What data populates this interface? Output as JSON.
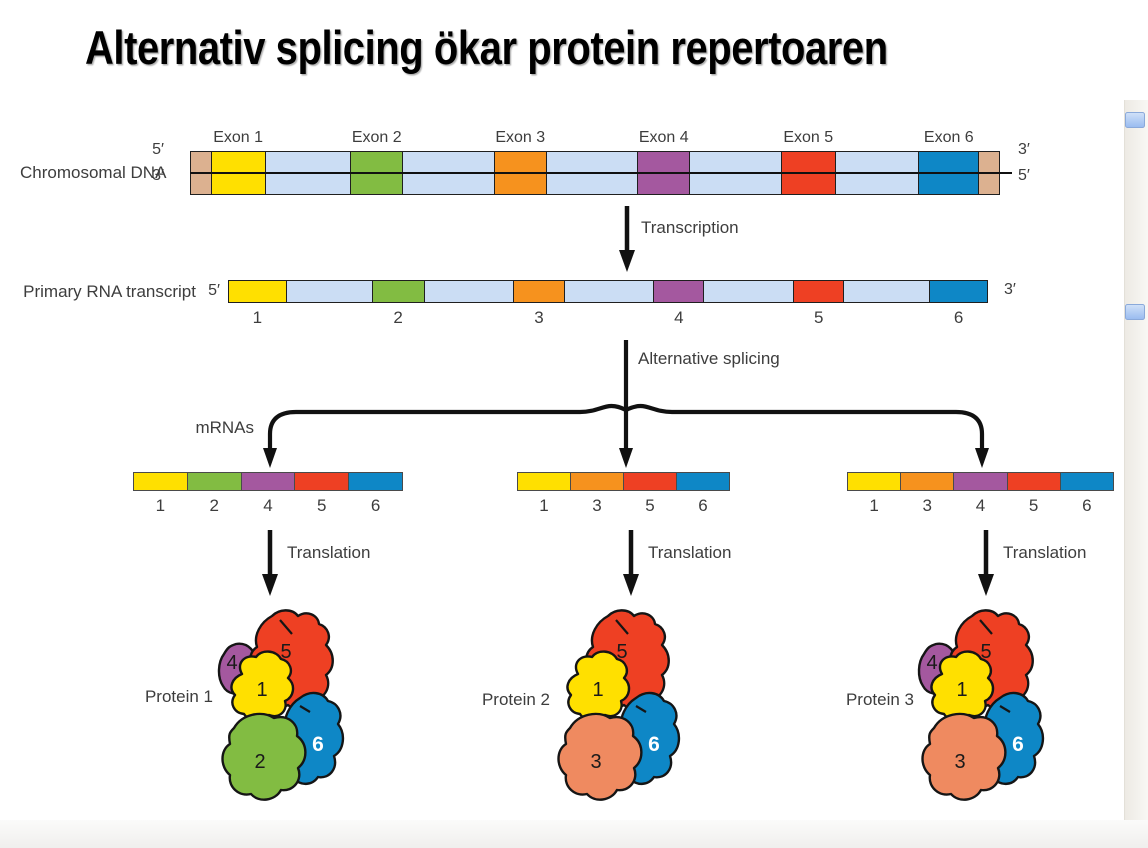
{
  "title": "Alternativ splicing ökar protein repertoaren",
  "labels": {
    "transcription": "Transcription",
    "alt_splicing": "Alternative splicing",
    "mrnas": "mRNAs",
    "translation": "Translation"
  },
  "colors": {
    "exon": {
      "1": "#FFE000",
      "2": "#82BC42",
      "3": "#F6921E",
      "4": "#A4589F",
      "5": "#EE4023",
      "6": "#0E87C6"
    },
    "domain": {
      "1": "#FFE000",
      "2": "#82BC42",
      "3": "#EF8A60",
      "4": "#A4589F",
      "5": "#EE4023",
      "6": "#0E87C6"
    },
    "intron": "#CBDDF4",
    "cap": "#DCB190",
    "outline": "#151515",
    "text": "#3d3d3d",
    "domain6_text": "#ffffff",
    "scroll_thumb": "#a9c7f0"
  },
  "dna": {
    "label": "Chromosomal DNA",
    "left": {
      "top": "5′",
      "bottom": "3′"
    },
    "right": {
      "top": "3′",
      "bottom": "5′"
    },
    "segments": [
      {
        "t": "cap",
        "w": 22
      },
      {
        "t": "exon",
        "n": "1",
        "label": "Exon 1",
        "w": 56
      },
      {
        "t": "intron",
        "w": 88
      },
      {
        "t": "exon",
        "n": "2",
        "label": "Exon 2",
        "w": 54
      },
      {
        "t": "intron",
        "w": 94
      },
      {
        "t": "exon",
        "n": "3",
        "label": "Exon 3",
        "w": 54
      },
      {
        "t": "intron",
        "w": 94
      },
      {
        "t": "exon",
        "n": "4",
        "label": "Exon 4",
        "w": 54
      },
      {
        "t": "intron",
        "w": 94
      },
      {
        "t": "exon",
        "n": "5",
        "label": "Exon 5",
        "w": 56
      },
      {
        "t": "intron",
        "w": 86
      },
      {
        "t": "exon",
        "n": "6",
        "label": "Exon 6",
        "w": 62
      },
      {
        "t": "cap",
        "w": 22
      }
    ]
  },
  "rna": {
    "label": "Primary RNA transcript",
    "five": "5′",
    "three": "3′",
    "segments": [
      {
        "t": "exon",
        "n": "1",
        "num": "1",
        "w": 62
      },
      {
        "t": "intron",
        "w": 92
      },
      {
        "t": "exon",
        "n": "2",
        "num": "2",
        "w": 56
      },
      {
        "t": "intron",
        "w": 96
      },
      {
        "t": "exon",
        "n": "3",
        "num": "3",
        "w": 54
      },
      {
        "t": "intron",
        "w": 96
      },
      {
        "t": "exon",
        "n": "4",
        "num": "4",
        "w": 54
      },
      {
        "t": "intron",
        "w": 96
      },
      {
        "t": "exon",
        "n": "5",
        "num": "5",
        "w": 54
      },
      {
        "t": "intron",
        "w": 92
      },
      {
        "t": "exon",
        "n": "6",
        "num": "6",
        "w": 62
      }
    ]
  },
  "mrnas": [
    {
      "exons": [
        "1",
        "2",
        "4",
        "5",
        "6"
      ]
    },
    {
      "exons": [
        "1",
        "3",
        "5",
        "6"
      ]
    },
    {
      "exons": [
        "1",
        "3",
        "4",
        "5",
        "6"
      ]
    }
  ],
  "proteins": [
    {
      "label": "Protein 1",
      "domains": [
        "4",
        "5",
        "1",
        "2",
        "6"
      ]
    },
    {
      "label": "Protein 2",
      "domains": [
        "5",
        "1",
        "3",
        "6"
      ]
    },
    {
      "label": "Protein 3",
      "domains": [
        "4",
        "5",
        "1",
        "3",
        "6"
      ]
    }
  ]
}
